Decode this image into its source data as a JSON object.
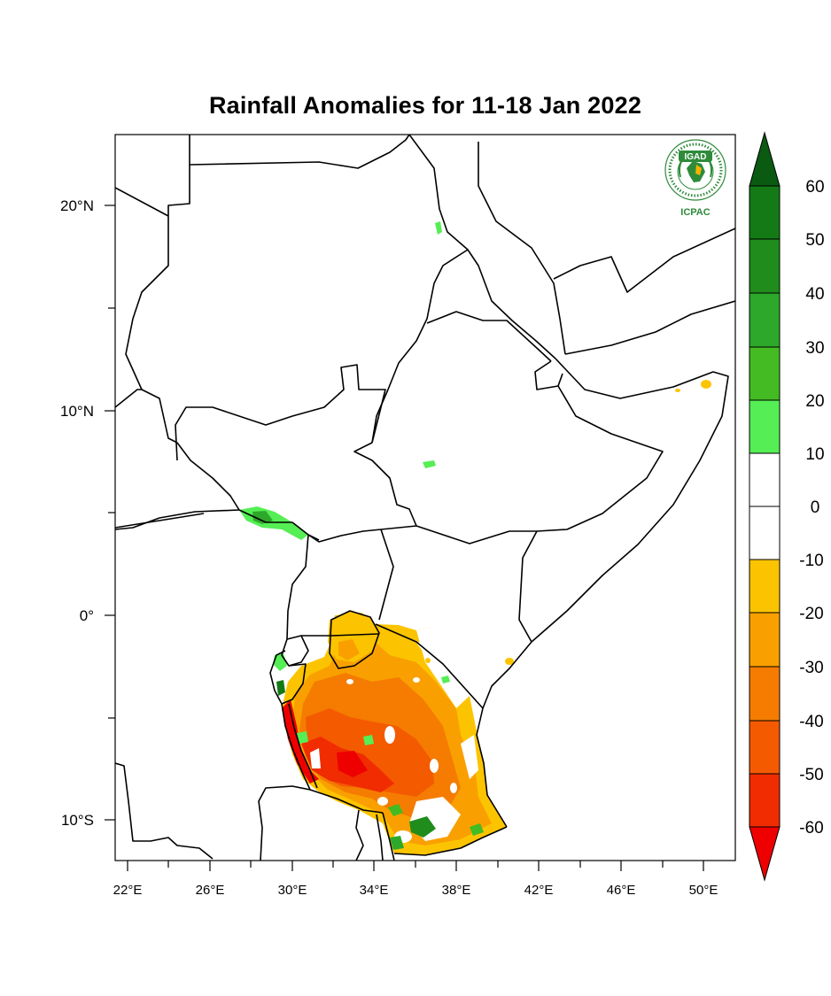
{
  "title": "Rainfall Anomalies for 11-18 Jan 2022",
  "logo": {
    "top_text": "IGAD",
    "bottom_text": "ICPAC",
    "icon": "igad-icpac-logo"
  },
  "axes": {
    "lat_labels": [
      "20°N",
      "10°N",
      "0°",
      "10°S"
    ],
    "lon_labels": [
      "22°E",
      "26°E",
      "30°E",
      "34°E",
      "38°E",
      "42°E",
      "46°E",
      "50°E"
    ]
  },
  "colorbar": {
    "labels": [
      "60",
      "50",
      "40",
      "30",
      "20",
      "10",
      "0",
      "-10",
      "-20",
      "-30",
      "-40",
      "-50",
      "-60"
    ],
    "colors": {
      "above_60": "#0b5a12",
      "50_60": "#137a16",
      "40_50": "#1f8c1b",
      "30_40": "#2da82a",
      "20_30": "#44bb22",
      "10_20": "#55ee55",
      "0_10": "#ffffff",
      "m10_0": "#ffffff",
      "m20_m10": "#fcc400",
      "m30_m20": "#f9a000",
      "m40_m30": "#f57c00",
      "m50_m40": "#f45a00",
      "m60_m50": "#f02c00",
      "below_m60": "#ee0000"
    }
  }
}
